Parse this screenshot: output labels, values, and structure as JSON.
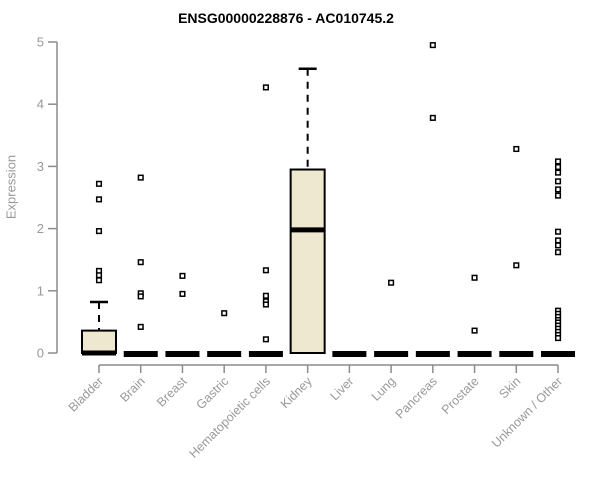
{
  "header": {
    "title": "ENSG00000228876 - AC010745.2"
  },
  "chart_data": {
    "type": "boxplot",
    "title": "ENSG00000228876 - AC010745.2",
    "xlabel": "",
    "ylabel": "Expression",
    "ylim": [
      0,
      5
    ],
    "yticks": [
      0,
      1,
      2,
      3,
      4,
      5
    ],
    "grid": false,
    "legend": "none",
    "colors": {
      "box_fill": "#EEE8D1",
      "box_border": "#000000",
      "median": "#000000",
      "outlier_stroke": "#000000",
      "outlier_fill": "#ffffff",
      "axis": "#8C8C8C",
      "tick_label": "#999999",
      "title": "#000000"
    },
    "categories": [
      "Bladder",
      "Brain",
      "Breast",
      "Gastric",
      "Hematopoietic cells",
      "Kidney",
      "Liver",
      "Lung",
      "Pancreas",
      "Prostate",
      "Skin",
      "Unknown / Other"
    ],
    "series": [
      {
        "category": "Bladder",
        "q1": 0,
        "median": 0,
        "q3": 0.36,
        "whisker_low": 0,
        "whisker_high": 0.82,
        "outliers": [
          2.72,
          2.47,
          1.96,
          1.32,
          1.25,
          1.17
        ]
      },
      {
        "category": "Brain",
        "q1": 0,
        "median": 0,
        "q3": 0,
        "whisker_low": 0,
        "whisker_high": 0,
        "outliers": [
          2.82,
          1.46,
          0.96,
          0.91,
          0.42
        ]
      },
      {
        "category": "Breast",
        "q1": 0,
        "median": 0,
        "q3": 0,
        "whisker_low": 0,
        "whisker_high": 0,
        "outliers": [
          1.24,
          0.95
        ]
      },
      {
        "category": "Gastric",
        "q1": 0,
        "median": 0,
        "q3": 0,
        "whisker_low": 0,
        "whisker_high": 0,
        "outliers": [
          0.64
        ]
      },
      {
        "category": "Hematopoietic cells",
        "q1": 0,
        "median": 0,
        "q3": 0,
        "whisker_low": 0,
        "whisker_high": 0,
        "outliers": [
          4.27,
          1.33,
          0.92,
          0.83,
          0.78,
          0.22
        ]
      },
      {
        "category": "Kidney",
        "q1": 0,
        "median": 1.98,
        "q3": 2.95,
        "whisker_low": 0,
        "whisker_high": 4.57,
        "outliers": []
      },
      {
        "category": "Liver",
        "q1": 0,
        "median": 0,
        "q3": 0,
        "whisker_low": 0,
        "whisker_high": 0,
        "outliers": []
      },
      {
        "category": "Lung",
        "q1": 0,
        "median": 0,
        "q3": 0,
        "whisker_low": 0,
        "whisker_high": 0,
        "outliers": [
          1.13
        ]
      },
      {
        "category": "Pancreas",
        "q1": 0,
        "median": 0,
        "q3": 0,
        "whisker_low": 0,
        "whisker_high": 0,
        "outliers": [
          4.95,
          3.78
        ]
      },
      {
        "category": "Prostate",
        "q1": 0,
        "median": 0,
        "q3": 0,
        "whisker_low": 0,
        "whisker_high": 0,
        "outliers": [
          1.21,
          0.36
        ]
      },
      {
        "category": "Skin",
        "q1": 0,
        "median": 0,
        "q3": 0,
        "whisker_low": 0,
        "whisker_high": 0,
        "outliers": [
          3.28,
          1.41
        ]
      },
      {
        "category": "Unknown / Other",
        "q1": 0,
        "median": 0,
        "q3": 0,
        "whisker_low": 0,
        "whisker_high": 0,
        "outliers": [
          3.08,
          2.99,
          2.9,
          2.76,
          2.63,
          2.53,
          1.95,
          1.81,
          1.73,
          1.62,
          0.68,
          0.63,
          0.58,
          0.53,
          0.49,
          0.44,
          0.39,
          0.34,
          0.29,
          0.24
        ]
      }
    ]
  }
}
